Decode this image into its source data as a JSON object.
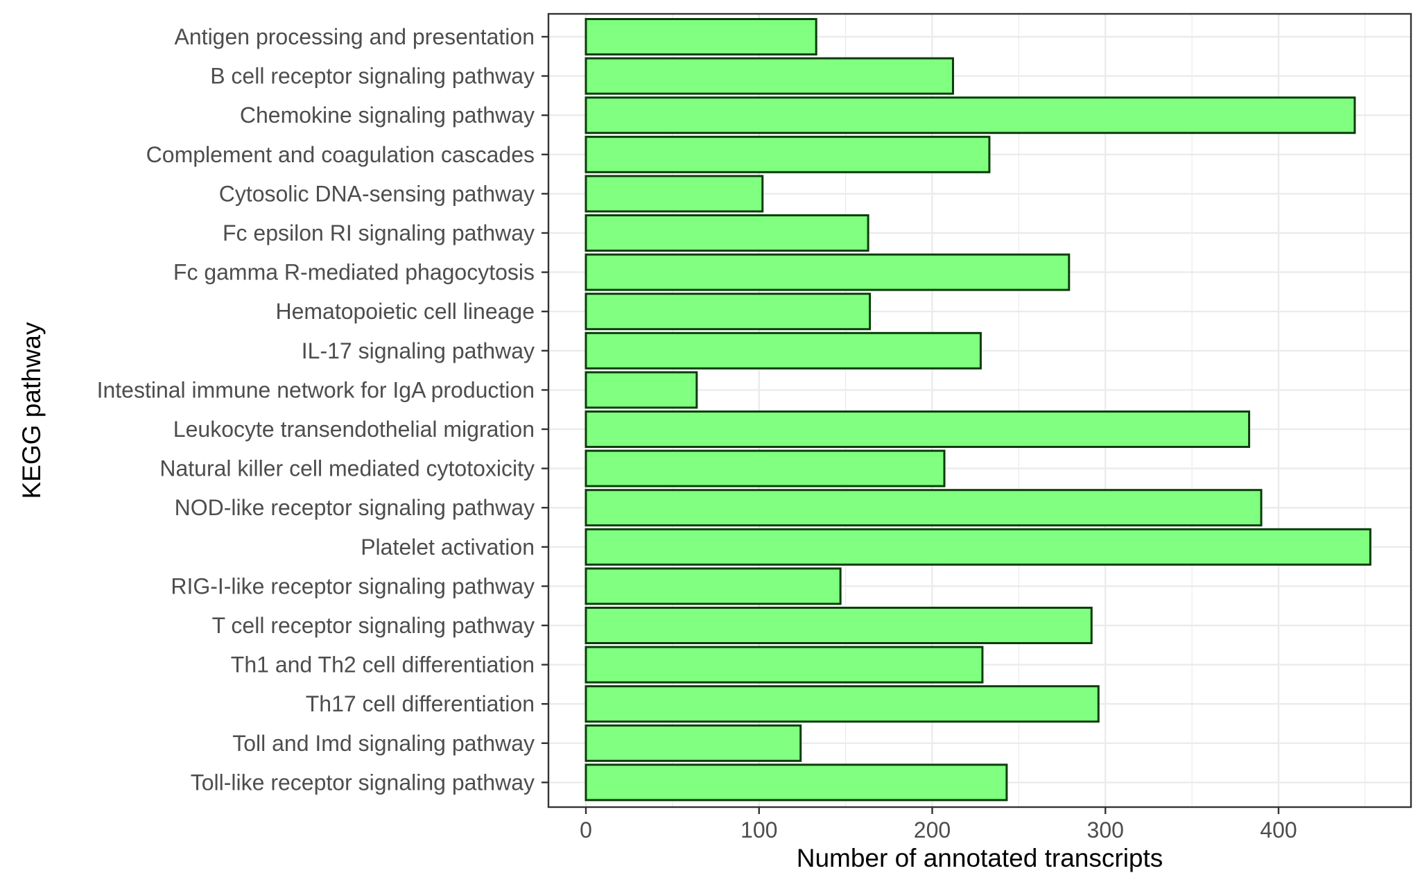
{
  "chart_data": {
    "type": "bar",
    "orientation": "horizontal",
    "categories": [
      "Antigen processing and presentation",
      "B cell receptor signaling pathway",
      "Chemokine signaling pathway",
      "Complement and coagulation cascades",
      "Cytosolic DNA-sensing pathway",
      "Fc epsilon RI signaling pathway",
      "Fc gamma R-mediated phagocytosis",
      "Hematopoietic cell lineage",
      "IL-17 signaling pathway",
      "Intestinal immune network for IgA production",
      "Leukocyte transendothelial migration",
      "Natural killer cell mediated cytotoxicity",
      "NOD-like receptor signaling pathway",
      "Platelet activation",
      "RIG-I-like receptor signaling pathway",
      "T cell receptor signaling pathway",
      "Th1 and Th2 cell differentiation",
      "Th17 cell differentiation",
      "Toll and Imd signaling pathway",
      "Toll-like receptor signaling pathway"
    ],
    "values": [
      133,
      212,
      444,
      233,
      102,
      163,
      279,
      164,
      228,
      64,
      383,
      207,
      390,
      453,
      147,
      292,
      229,
      296,
      124,
      243
    ],
    "xlabel": "Number of annotated transcripts",
    "ylabel": "KEGG pathway",
    "xlim": [
      -22,
      475
    ],
    "x_ticks": [
      0,
      100,
      200,
      300,
      400
    ],
    "x_tick_labels": [
      "0",
      "100",
      "200",
      "300",
      "400"
    ],
    "grid": true,
    "theme": "bw",
    "bar_fill": "#80ff80",
    "bar_stroke": "#0a3d0a"
  }
}
